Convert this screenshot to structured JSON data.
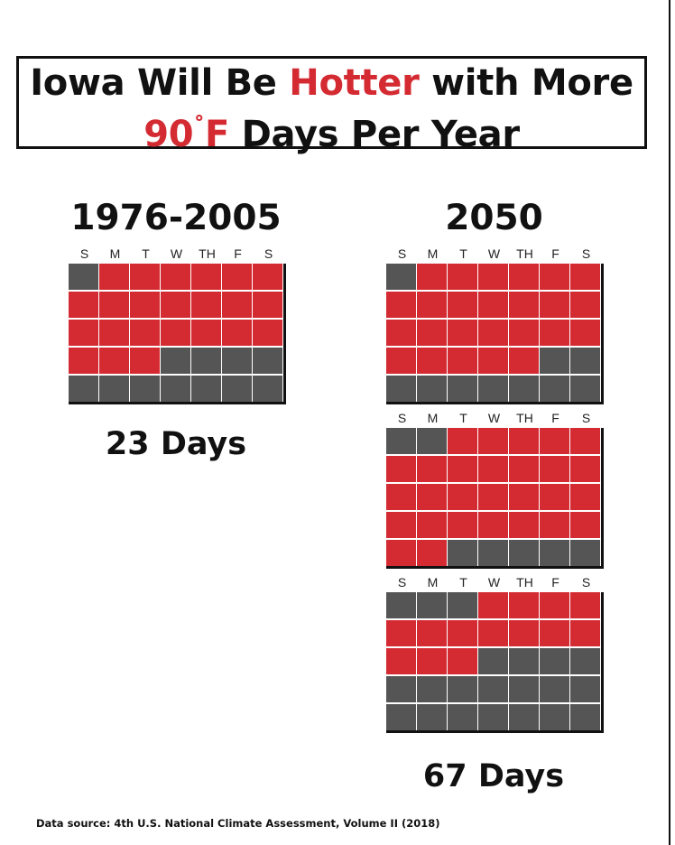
{
  "title": {
    "line1_part1": "Iowa Will Be ",
    "line1_highlight": "Hotter",
    "line1_part2": " with More",
    "line2_highlight_num": "90",
    "line2_degree": "˚",
    "line2_highlight_unit": "F",
    "line2_part2": " Days Per Year"
  },
  "weekday_labels": [
    "S",
    "M",
    "T",
    "W",
    "TH",
    "F",
    "S"
  ],
  "colors": {
    "hot_day": "#d42a32",
    "other_day": "#555555",
    "highlight_text": "#d42a32"
  },
  "periods": [
    {
      "label": "1976-2005",
      "count_label": "23 Days",
      "hot_days": 23
    },
    {
      "label": "2050",
      "count_label": "67 Days",
      "hot_days": 67
    }
  ],
  "calendars": [
    {
      "period": "1976-2005",
      "start_weekday": 1,
      "hot_days": 23
    },
    {
      "period": "2050",
      "start_weekday": 1,
      "hot_days": 25
    },
    {
      "period": "2050",
      "start_weekday": 2,
      "hot_days": 28
    },
    {
      "period": "2050",
      "start_weekday": 3,
      "hot_days": 14
    }
  ],
  "source": "Data source: 4th U.S. National Climate Assessment, Volume II (2018)"
}
